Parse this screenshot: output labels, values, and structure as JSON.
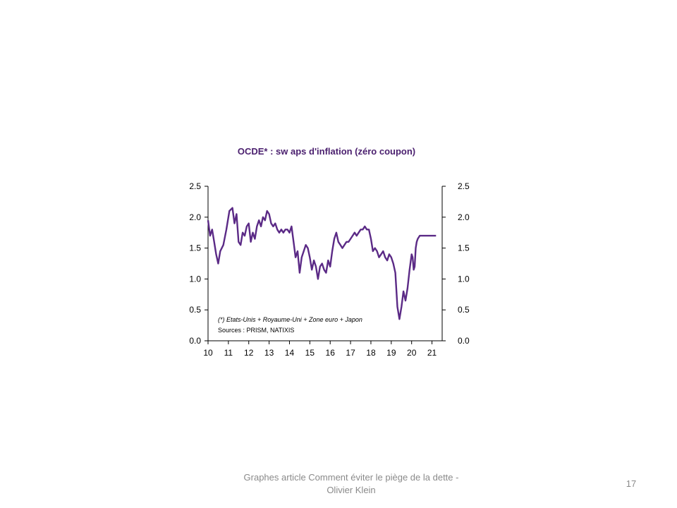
{
  "slide": {
    "footer": "Graphes article Comment  éviter le piège de la dette - Olivier Klein",
    "page_number": "17"
  },
  "chart_data": {
    "type": "line",
    "title": "OCDE* : sw aps d'inflation (zéro coupon)",
    "xlabel": "",
    "ylabel": "",
    "xlim": [
      10,
      21.5
    ],
    "ylim": [
      0,
      2.5
    ],
    "x_tick_labels": [
      "10",
      "11",
      "12",
      "13",
      "14",
      "15",
      "16",
      "17",
      "18",
      "19",
      "20",
      "21"
    ],
    "y_tick_labels": [
      "0.0",
      "0.5",
      "1.0",
      "1.5",
      "2.0",
      "2.5"
    ],
    "y_tick_labels_right": [
      "0.0",
      "0.5",
      "1.0",
      "1.5",
      "2.0",
      "2.5"
    ],
    "grid": false,
    "annotations": [
      "(*) Etats-Unis + Royaume-Uni + Zone euro + Japon",
      "Sources  : PRISM, NATIXIS"
    ],
    "line_color": "#5b2a86",
    "series": [
      {
        "x": [
          10.0,
          10.1,
          10.2,
          10.3,
          10.4,
          10.5,
          10.6,
          10.75,
          10.9,
          11.05,
          11.2,
          11.3,
          11.4,
          11.5,
          11.6,
          11.7,
          11.8,
          11.9,
          12.0,
          12.1,
          12.2,
          12.3,
          12.4,
          12.5,
          12.6,
          12.7,
          12.8,
          12.9,
          13.0,
          13.1,
          13.2,
          13.3,
          13.4,
          13.5,
          13.6,
          13.7,
          13.8,
          13.9,
          14.0,
          14.1,
          14.2,
          14.3,
          14.4,
          14.5,
          14.6,
          14.7,
          14.8,
          14.9,
          15.0,
          15.1,
          15.2,
          15.3,
          15.4,
          15.5,
          15.6,
          15.7,
          15.8,
          15.9,
          16.0,
          16.1,
          16.2,
          16.3,
          16.4,
          16.5,
          16.6,
          16.7,
          16.8,
          16.9,
          17.0,
          17.1,
          17.2,
          17.3,
          17.4,
          17.5,
          17.6,
          17.7,
          17.8,
          17.9,
          18.0,
          18.1,
          18.2,
          18.3,
          18.4,
          18.5,
          18.6,
          18.7,
          18.8,
          18.9,
          19.0,
          19.1,
          19.2,
          19.3,
          19.4,
          19.5,
          19.6,
          19.7,
          19.8,
          19.9,
          20.0,
          20.05,
          20.1,
          20.15,
          20.2,
          20.25,
          20.3,
          20.4,
          20.5,
          20.6,
          20.7,
          20.8,
          20.9,
          21.0,
          21.1,
          21.2
        ],
        "y": [
          1.95,
          1.7,
          1.8,
          1.6,
          1.4,
          1.25,
          1.45,
          1.55,
          1.8,
          2.1,
          2.15,
          1.9,
          2.05,
          1.6,
          1.55,
          1.75,
          1.7,
          1.85,
          1.9,
          1.6,
          1.75,
          1.65,
          1.85,
          1.95,
          1.85,
          2.0,
          1.95,
          2.1,
          2.05,
          1.9,
          1.85,
          1.9,
          1.8,
          1.75,
          1.8,
          1.75,
          1.8,
          1.8,
          1.75,
          1.85,
          1.6,
          1.35,
          1.45,
          1.1,
          1.35,
          1.45,
          1.55,
          1.5,
          1.35,
          1.15,
          1.3,
          1.2,
          1.0,
          1.2,
          1.25,
          1.15,
          1.1,
          1.3,
          1.2,
          1.45,
          1.65,
          1.75,
          1.6,
          1.55,
          1.5,
          1.55,
          1.6,
          1.6,
          1.65,
          1.7,
          1.75,
          1.7,
          1.75,
          1.8,
          1.8,
          1.85,
          1.8,
          1.8,
          1.65,
          1.45,
          1.5,
          1.45,
          1.35,
          1.4,
          1.45,
          1.35,
          1.3,
          1.4,
          1.35,
          1.25,
          1.1,
          0.55,
          0.35,
          0.55,
          0.8,
          0.65,
          0.85,
          1.15,
          1.4,
          1.35,
          1.15,
          1.2,
          1.5,
          1.6,
          1.65,
          1.7,
          1.7,
          1.7,
          1.7,
          1.7,
          1.7,
          1.7,
          1.7,
          1.7
        ]
      }
    ]
  }
}
